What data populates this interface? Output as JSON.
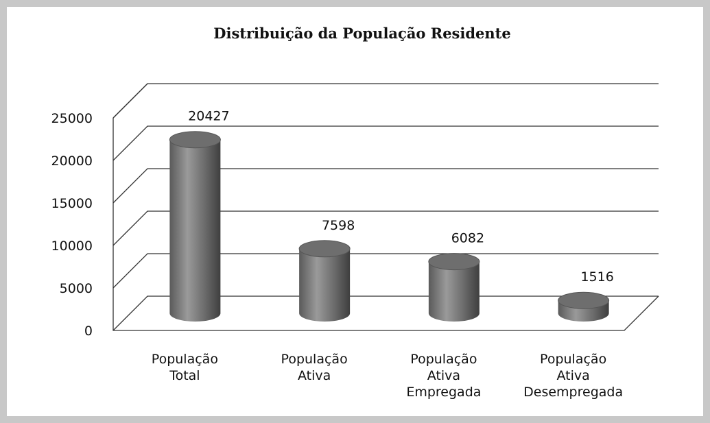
{
  "chart_data": {
    "type": "bar3d",
    "title": "Distribuição da População Residente",
    "categories": [
      "População Total",
      "População Ativa",
      "População Ativa Empregada",
      "População Ativa Desempregada"
    ],
    "values": [
      20427,
      7598,
      6082,
      1516
    ],
    "color": "#6e6e6e",
    "ylim": [
      0,
      25000
    ],
    "yticks": [
      0,
      5000,
      10000,
      15000,
      20000,
      25000
    ],
    "grid": true
  }
}
